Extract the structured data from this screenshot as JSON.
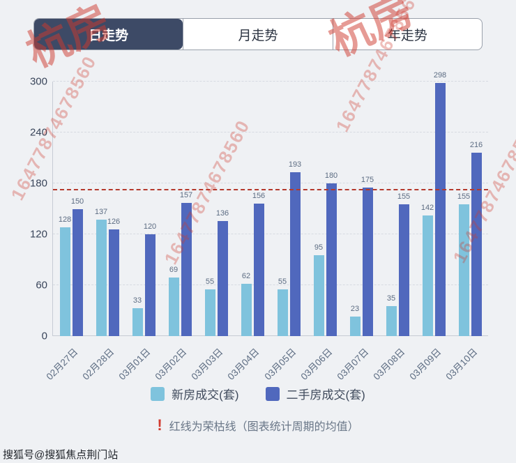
{
  "tabs": {
    "items": [
      {
        "label": "日走势",
        "active": true
      },
      {
        "label": "月走势",
        "active": false
      },
      {
        "label": "年走势",
        "active": false
      }
    ]
  },
  "chart_data": {
    "type": "bar",
    "title": "",
    "xlabel": "",
    "ylabel": "",
    "categories": [
      "02月27日",
      "02月28日",
      "03月01日",
      "03月02日",
      "03月03日",
      "03月04日",
      "03月05日",
      "03月06日",
      "03月07日",
      "03月08日",
      "03月09日",
      "03月10日"
    ],
    "series": [
      {
        "name": "新房成交(套)",
        "color": "#7fc3dd",
        "values": [
          128,
          137,
          33,
          69,
          55,
          62,
          55,
          95,
          23,
          35,
          142,
          155
        ]
      },
      {
        "name": "二手房成交(套)",
        "color": "#5068bd",
        "values": [
          150,
          126,
          120,
          157,
          136,
          156,
          193,
          180,
          175,
          155,
          298,
          216
        ]
      }
    ],
    "ylim": [
      0,
      300
    ],
    "yticks": [
      0,
      60,
      120,
      180,
      240,
      300
    ],
    "grid": true,
    "legend_position": "bottom",
    "reference_line": {
      "value": 172,
      "color": "#b5392c",
      "style": "dashed"
    }
  },
  "note": {
    "icon_glyph": "!",
    "text": "红线为荣枯线（图表统计周期的均值）"
  },
  "watermarks": {
    "brand": "杭房",
    "number": "16477874678560"
  },
  "footer": {
    "account": "搜狐号@搜狐焦点荆门站"
  }
}
